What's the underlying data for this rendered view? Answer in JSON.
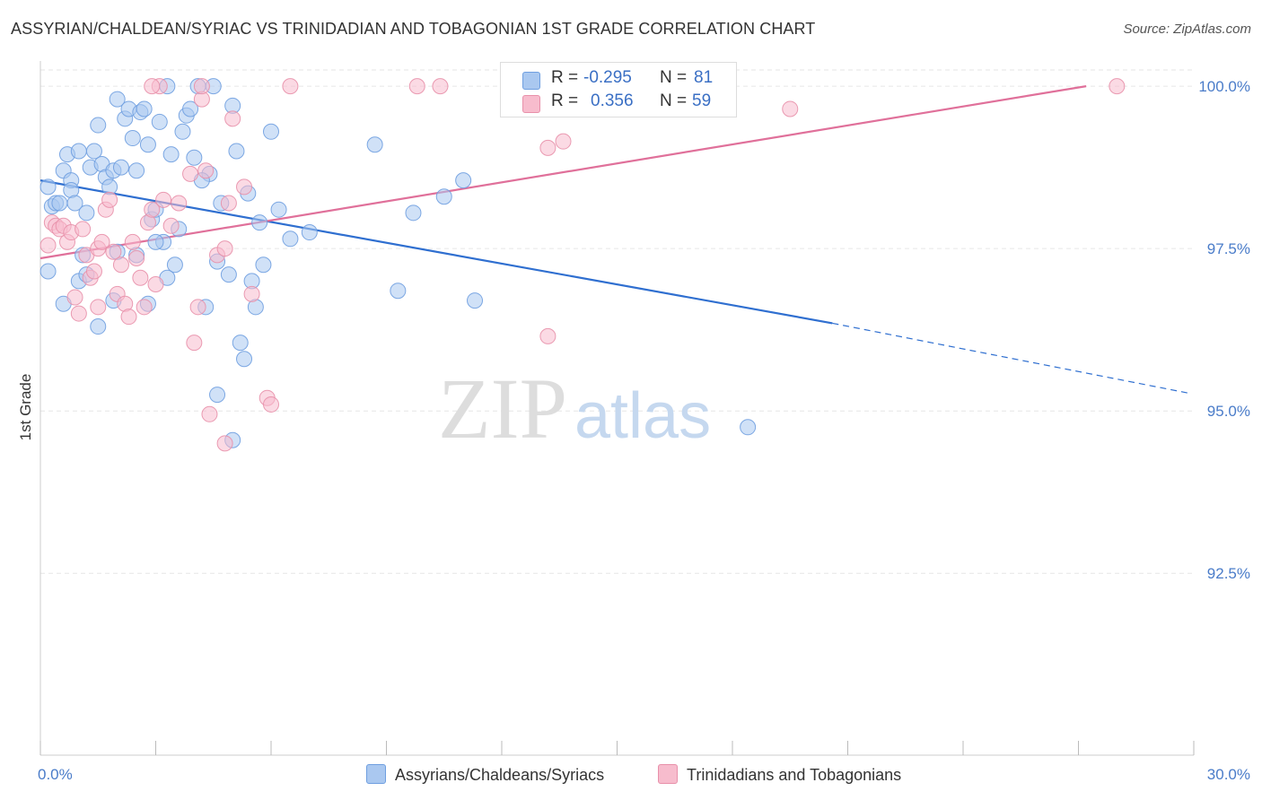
{
  "title": "ASSYRIAN/CHALDEAN/SYRIAC VS TRINIDADIAN AND TOBAGONIAN 1ST GRADE CORRELATION CHART",
  "source": "Source: ZipAtlas.com",
  "watermark": {
    "zip": "ZIP",
    "atlas": "atlas"
  },
  "legend": {
    "rows": [
      {
        "r_label": "R =",
        "r_value": "-0.295",
        "n_label": "N =",
        "n_value": "81",
        "color": "#aac8f0",
        "border": "#6f9fe0"
      },
      {
        "r_label": "R =",
        "r_value": "0.356",
        "n_label": "N =",
        "n_value": "59",
        "color": "#f7bccd",
        "border": "#e890aa"
      }
    ]
  },
  "chart_data": {
    "type": "scatter",
    "title": "ASSYRIAN/CHALDEAN/SYRIAC VS TRINIDADIAN AND TOBAGONIAN 1ST GRADE CORRELATION CHART",
    "xlabel": "",
    "ylabel": "1st Grade",
    "xlim": [
      0.0,
      30.0
    ],
    "ylim": [
      89.7,
      100.25
    ],
    "x_tick_labels": [
      "0.0%",
      "30.0%"
    ],
    "y_ticks": [
      100.0,
      97.5,
      95.0,
      92.5
    ],
    "y_tick_labels": [
      "100.0%",
      "97.5%",
      "95.0%",
      "92.5%"
    ],
    "grid": true,
    "series": [
      {
        "name": "Assyrians/Chaldeans/Syriacs",
        "color": "#6f9fe0",
        "fill": "#aac8f0",
        "trend": {
          "x0": 0.0,
          "y0": 98.55,
          "x1": 20.6,
          "y1": 96.35,
          "dash_to_x": 29.9,
          "dash_to_y": 95.27
        },
        "points": [
          [
            0.2,
            98.45
          ],
          [
            0.3,
            98.15
          ],
          [
            0.4,
            98.2
          ],
          [
            0.5,
            98.2
          ],
          [
            0.6,
            98.7
          ],
          [
            0.7,
            98.95
          ],
          [
            0.8,
            98.55
          ],
          [
            0.8,
            98.4
          ],
          [
            0.9,
            98.2
          ],
          [
            1.0,
            99.0
          ],
          [
            1.1,
            97.4
          ],
          [
            1.2,
            98.05
          ],
          [
            1.3,
            98.75
          ],
          [
            1.4,
            99.0
          ],
          [
            1.5,
            99.4
          ],
          [
            1.6,
            98.8
          ],
          [
            1.7,
            98.6
          ],
          [
            1.8,
            98.45
          ],
          [
            1.9,
            98.7
          ],
          [
            2.0,
            99.8
          ],
          [
            2.1,
            98.75
          ],
          [
            2.2,
            99.5
          ],
          [
            2.3,
            99.65
          ],
          [
            2.4,
            99.2
          ],
          [
            2.5,
            98.7
          ],
          [
            2.6,
            99.6
          ],
          [
            2.7,
            99.65
          ],
          [
            2.8,
            99.1
          ],
          [
            2.9,
            97.95
          ],
          [
            3.0,
            98.1
          ],
          [
            3.1,
            99.45
          ],
          [
            3.2,
            97.6
          ],
          [
            3.3,
            100.0
          ],
          [
            3.4,
            98.95
          ],
          [
            3.5,
            97.25
          ],
          [
            3.6,
            97.8
          ],
          [
            3.7,
            99.3
          ],
          [
            3.8,
            99.55
          ],
          [
            3.9,
            99.65
          ],
          [
            4.0,
            98.9
          ],
          [
            4.1,
            100.0
          ],
          [
            4.3,
            96.6
          ],
          [
            4.4,
            98.65
          ],
          [
            4.5,
            100.0
          ],
          [
            4.6,
            97.3
          ],
          [
            4.7,
            98.2
          ],
          [
            4.9,
            97.1
          ],
          [
            5.0,
            99.7
          ],
          [
            5.1,
            99.0
          ],
          [
            5.2,
            96.05
          ],
          [
            5.3,
            95.8
          ],
          [
            5.4,
            98.35
          ],
          [
            5.5,
            97.0
          ],
          [
            5.6,
            96.6
          ],
          [
            5.7,
            97.9
          ],
          [
            5.8,
            97.25
          ],
          [
            6.0,
            99.3
          ],
          [
            6.2,
            98.1
          ],
          [
            6.5,
            97.65
          ],
          [
            7.0,
            97.75
          ],
          [
            8.7,
            99.1
          ],
          [
            9.3,
            96.85
          ],
          [
            9.7,
            98.05
          ],
          [
            10.5,
            98.3
          ],
          [
            11.0,
            98.55
          ],
          [
            11.3,
            96.7
          ],
          [
            0.2,
            97.15
          ],
          [
            1.0,
            97.0
          ],
          [
            1.5,
            96.3
          ],
          [
            2.5,
            97.4
          ],
          [
            3.0,
            97.6
          ],
          [
            1.9,
            96.7
          ],
          [
            4.6,
            95.25
          ],
          [
            5.0,
            94.55
          ],
          [
            18.4,
            94.75
          ],
          [
            0.6,
            96.65
          ],
          [
            2.0,
            97.45
          ],
          [
            3.3,
            97.05
          ],
          [
            1.2,
            97.1
          ],
          [
            4.2,
            98.55
          ],
          [
            2.8,
            96.65
          ]
        ]
      },
      {
        "name": "Trinidadians and Tobagonians",
        "color": "#e890aa",
        "fill": "#f7bccd",
        "trend": {
          "x0": 0.0,
          "y0": 97.35,
          "x1": 27.2,
          "y1": 100.0
        },
        "points": [
          [
            0.3,
            97.9
          ],
          [
            0.4,
            97.85
          ],
          [
            0.5,
            97.8
          ],
          [
            0.6,
            97.85
          ],
          [
            0.7,
            97.6
          ],
          [
            0.8,
            97.75
          ],
          [
            0.9,
            96.75
          ],
          [
            1.0,
            96.5
          ],
          [
            1.1,
            97.8
          ],
          [
            1.2,
            97.4
          ],
          [
            1.3,
            97.05
          ],
          [
            1.4,
            97.15
          ],
          [
            1.5,
            97.5
          ],
          [
            1.6,
            97.6
          ],
          [
            1.7,
            98.1
          ],
          [
            1.8,
            98.25
          ],
          [
            1.9,
            97.45
          ],
          [
            2.0,
            96.8
          ],
          [
            2.1,
            97.25
          ],
          [
            2.2,
            96.65
          ],
          [
            2.3,
            96.45
          ],
          [
            2.4,
            97.6
          ],
          [
            2.5,
            97.35
          ],
          [
            2.6,
            97.05
          ],
          [
            2.7,
            96.6
          ],
          [
            2.8,
            97.9
          ],
          [
            2.9,
            98.1
          ],
          [
            3.0,
            96.95
          ],
          [
            3.1,
            100.0
          ],
          [
            3.2,
            98.25
          ],
          [
            3.4,
            97.85
          ],
          [
            3.6,
            98.2
          ],
          [
            3.9,
            98.65
          ],
          [
            4.0,
            96.05
          ],
          [
            4.1,
            96.6
          ],
          [
            4.2,
            99.8
          ],
          [
            4.3,
            98.7
          ],
          [
            4.4,
            94.95
          ],
          [
            4.6,
            97.4
          ],
          [
            4.8,
            97.5
          ],
          [
            4.9,
            98.2
          ],
          [
            5.0,
            99.5
          ],
          [
            5.3,
            98.45
          ],
          [
            5.5,
            96.8
          ],
          [
            5.9,
            95.2
          ],
          [
            6.0,
            95.1
          ],
          [
            6.5,
            100.0
          ],
          [
            9.8,
            100.0
          ],
          [
            10.4,
            100.0
          ],
          [
            13.2,
            99.05
          ],
          [
            13.6,
            99.15
          ],
          [
            13.2,
            96.15
          ],
          [
            19.5,
            99.65
          ],
          [
            28.0,
            100.0
          ],
          [
            4.2,
            100.0
          ],
          [
            4.8,
            94.5
          ],
          [
            0.2,
            97.55
          ],
          [
            2.9,
            100.0
          ],
          [
            1.5,
            96.6
          ]
        ]
      }
    ]
  },
  "bottom_legend": [
    {
      "label": "Assyrians/Chaldeans/Syriacs",
      "color": "#aac8f0",
      "border": "#6f9fe0"
    },
    {
      "label": "Trinidadians and Tobagonians",
      "color": "#f7bccd",
      "border": "#e890aa"
    }
  ]
}
